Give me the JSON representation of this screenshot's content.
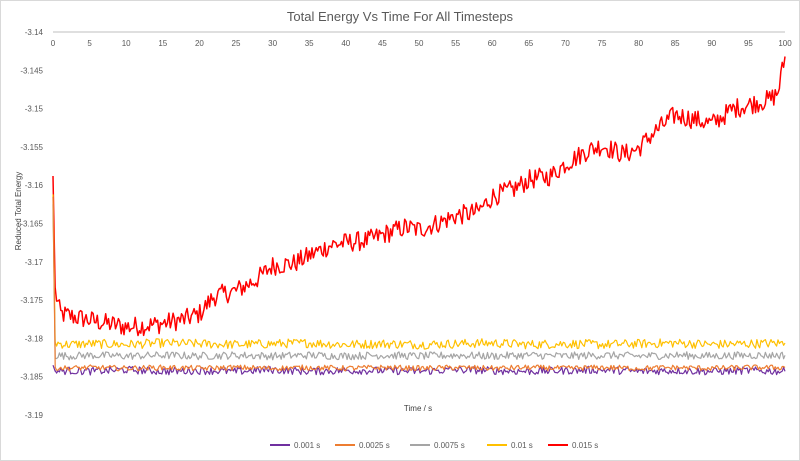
{
  "chart_data": {
    "type": "line",
    "title": "Total Energy Vs Time For All Timesteps",
    "xlabel": "Time / s",
    "ylabel": "Reduced Total Energy",
    "xlim": [
      0,
      100
    ],
    "ylim": [
      -3.19,
      -3.14
    ],
    "x_ticks": [
      "0",
      "5",
      "10",
      "15",
      "20",
      "25",
      "30",
      "35",
      "40",
      "45",
      "50",
      "55",
      "60",
      "65",
      "70",
      "75",
      "80",
      "85",
      "90",
      "95",
      "100"
    ],
    "y_ticks": [
      "-3.14",
      "-3.145",
      "-3.15",
      "-3.155",
      "-3.16",
      "-3.165",
      "-3.17",
      "-3.175",
      "-3.18",
      "-3.185",
      "-3.19"
    ],
    "x_axis_position": "top",
    "grid": false,
    "legend_position": "bottom",
    "series": [
      {
        "name": "0.001 s",
        "color": "#7030a0",
        "x": [
          0,
          0.3,
          2,
          5,
          10,
          15,
          20,
          25,
          30,
          35,
          40,
          45,
          50,
          55,
          60,
          65,
          70,
          75,
          80,
          85,
          90,
          95,
          100
        ],
        "y": [
          -3.1835,
          -3.1843,
          -3.1842,
          -3.1843,
          -3.1841,
          -3.1843,
          -3.1842,
          -3.1843,
          -3.1841,
          -3.1843,
          -3.1842,
          -3.1842,
          -3.1843,
          -3.1841,
          -3.1842,
          -3.1843,
          -3.1842,
          -3.1841,
          -3.1843,
          -3.1842,
          -3.1843,
          -3.1842,
          -3.1843
        ]
      },
      {
        "name": "0.0025 s",
        "color": "#ed7d31",
        "x": [
          0,
          0.3,
          2,
          5,
          10,
          15,
          20,
          25,
          30,
          35,
          40,
          45,
          50,
          55,
          60,
          65,
          70,
          75,
          80,
          85,
          90,
          95,
          100
        ],
        "y": [
          -3.1615,
          -3.1838,
          -3.1839,
          -3.1838,
          -3.1839,
          -3.1838,
          -3.1839,
          -3.1838,
          -3.1839,
          -3.1838,
          -3.1839,
          -3.1838,
          -3.1839,
          -3.1838,
          -3.1839,
          -3.1838,
          -3.1839,
          -3.1838,
          -3.1839,
          -3.1838,
          -3.1839,
          -3.1838,
          -3.1838
        ]
      },
      {
        "name": "0.0075 s",
        "color": "#a5a5a5",
        "x": [
          0,
          0.3,
          2,
          5,
          10,
          15,
          20,
          25,
          30,
          35,
          40,
          45,
          50,
          55,
          60,
          65,
          70,
          75,
          80,
          85,
          90,
          95,
          100
        ],
        "y": [
          -3.1625,
          -3.1822,
          -3.1823,
          -3.1822,
          -3.1823,
          -3.1822,
          -3.1823,
          -3.1822,
          -3.1823,
          -3.1822,
          -3.1823,
          -3.1822,
          -3.1823,
          -3.1822,
          -3.1823,
          -3.1822,
          -3.1823,
          -3.1822,
          -3.1823,
          -3.1822,
          -3.1823,
          -3.1822,
          -3.1822
        ]
      },
      {
        "name": "0.01 s",
        "color": "#ffc000",
        "x": [
          0,
          0.3,
          2,
          5,
          10,
          15,
          20,
          25,
          30,
          35,
          40,
          45,
          50,
          55,
          60,
          65,
          70,
          75,
          80,
          85,
          90,
          95,
          100
        ],
        "y": [
          -3.1612,
          -3.1806,
          -3.1808,
          -3.1807,
          -3.1808,
          -3.1806,
          -3.1807,
          -3.1808,
          -3.1807,
          -3.1806,
          -3.1808,
          -3.1807,
          -3.1808,
          -3.1807,
          -3.1806,
          -3.1808,
          -3.1807,
          -3.1808,
          -3.1807,
          -3.1806,
          -3.1808,
          -3.1807,
          -3.1806
        ]
      },
      {
        "name": "0.015 s",
        "color": "#ff0000",
        "x": [
          0,
          0.3,
          1,
          3,
          6,
          10,
          14,
          18,
          20,
          22,
          25,
          28,
          30,
          33,
          35,
          38,
          40,
          43,
          45,
          48,
          50,
          53,
          55,
          58,
          60,
          63,
          65,
          68,
          70,
          73,
          75,
          78,
          80,
          82,
          85,
          88,
          90,
          93,
          95,
          98,
          99,
          100
        ],
        "y": [
          -3.1588,
          -3.1738,
          -3.1768,
          -3.1772,
          -3.1778,
          -3.1785,
          -3.1782,
          -3.1775,
          -3.1768,
          -3.1745,
          -3.1738,
          -3.1722,
          -3.1705,
          -3.1702,
          -3.1692,
          -3.1678,
          -3.1675,
          -3.1672,
          -3.1665,
          -3.1655,
          -3.1658,
          -3.1648,
          -3.164,
          -3.1635,
          -3.1615,
          -3.1605,
          -3.1593,
          -3.1588,
          -3.1572,
          -3.1555,
          -3.1548,
          -3.156,
          -3.1552,
          -3.1532,
          -3.1508,
          -3.1515,
          -3.152,
          -3.15,
          -3.1495,
          -3.1488,
          -3.148,
          -3.1432
        ]
      }
    ]
  }
}
